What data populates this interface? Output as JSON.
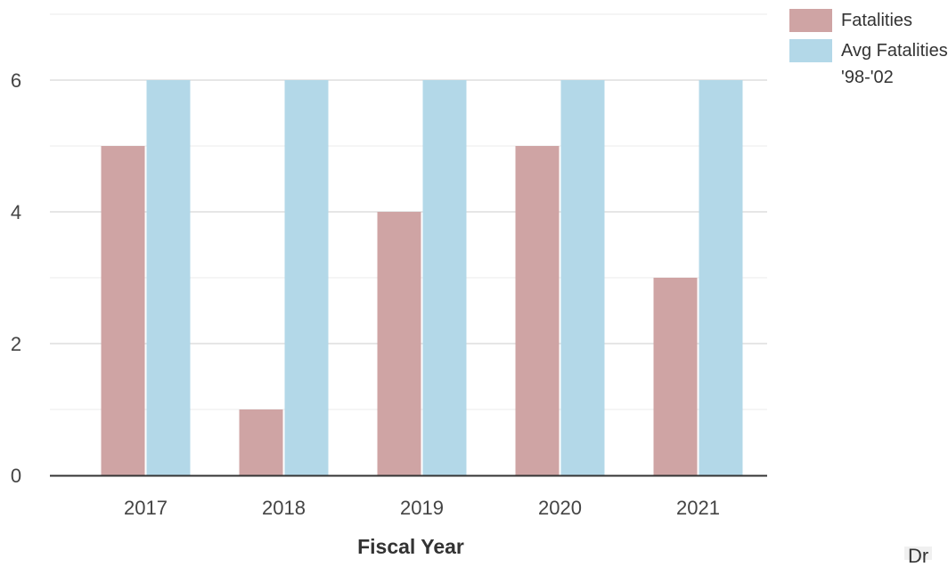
{
  "chart_data": {
    "type": "bar",
    "categories": [
      "2017",
      "2018",
      "2019",
      "2020",
      "2021"
    ],
    "series": [
      {
        "name": "Fatalities",
        "values": [
          5,
          1,
          4,
          5,
          3
        ],
        "color": "#cfa4a4"
      },
      {
        "name": "Avg Fatalities '98-'02",
        "values": [
          6,
          6,
          6,
          6,
          6
        ],
        "color": "#b3d8e8"
      }
    ],
    "title": "",
    "xlabel": "Fiscal Year",
    "ylabel": "",
    "ylim": [
      0,
      7
    ],
    "yticks": [
      "0",
      "2",
      "4",
      "6"
    ],
    "grid": true,
    "legend_position": "right"
  },
  "corner_text": "Dr"
}
